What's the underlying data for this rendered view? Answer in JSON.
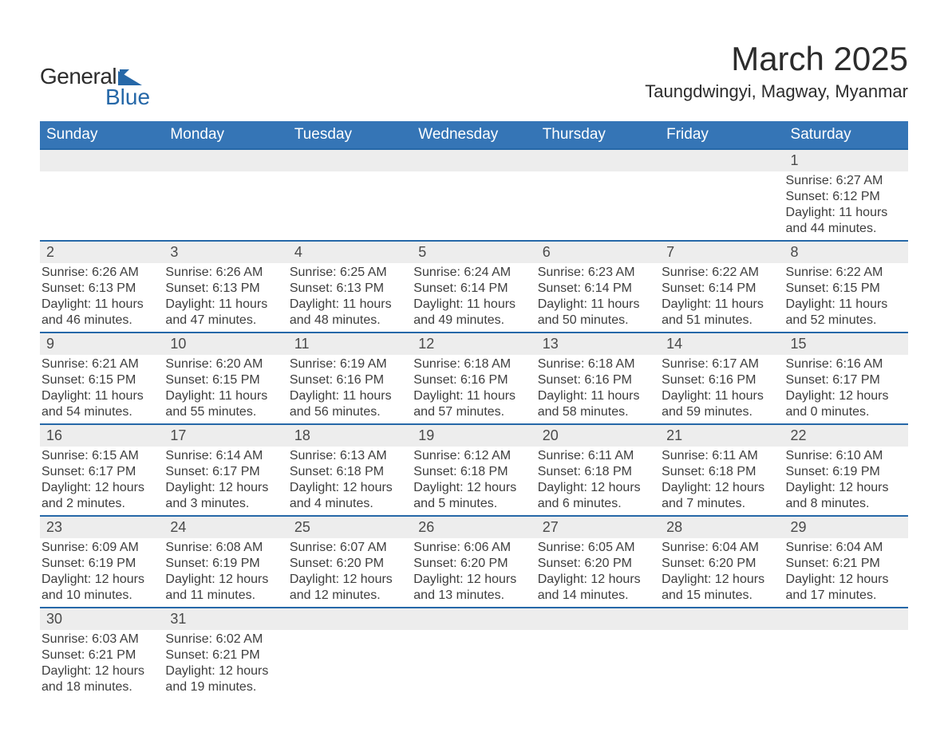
{
  "logo": {
    "text_general": "General",
    "text_blue": "Blue",
    "icon_color": "#2668a8"
  },
  "header": {
    "month_title": "March 2025",
    "location": "Taungdwingyi, Magway, Myanmar"
  },
  "colors": {
    "header_bg": "#3575b6",
    "header_text": "#ffffff",
    "row_border": "#2668a8",
    "daynum_bg": "#ededed",
    "body_bg": "#ffffff",
    "text": "#3e3e3e"
  },
  "day_headers": [
    "Sunday",
    "Monday",
    "Tuesday",
    "Wednesday",
    "Thursday",
    "Friday",
    "Saturday"
  ],
  "labels": {
    "sunrise": "Sunrise:",
    "sunset": "Sunset:",
    "daylight": "Daylight:"
  },
  "weeks": [
    [
      null,
      null,
      null,
      null,
      null,
      null,
      {
        "d": "1",
        "sr": "6:27 AM",
        "ss": "6:12 PM",
        "dl": "11 hours and 44 minutes."
      }
    ],
    [
      {
        "d": "2",
        "sr": "6:26 AM",
        "ss": "6:13 PM",
        "dl": "11 hours and 46 minutes."
      },
      {
        "d": "3",
        "sr": "6:26 AM",
        "ss": "6:13 PM",
        "dl": "11 hours and 47 minutes."
      },
      {
        "d": "4",
        "sr": "6:25 AM",
        "ss": "6:13 PM",
        "dl": "11 hours and 48 minutes."
      },
      {
        "d": "5",
        "sr": "6:24 AM",
        "ss": "6:14 PM",
        "dl": "11 hours and 49 minutes."
      },
      {
        "d": "6",
        "sr": "6:23 AM",
        "ss": "6:14 PM",
        "dl": "11 hours and 50 minutes."
      },
      {
        "d": "7",
        "sr": "6:22 AM",
        "ss": "6:14 PM",
        "dl": "11 hours and 51 minutes."
      },
      {
        "d": "8",
        "sr": "6:22 AM",
        "ss": "6:15 PM",
        "dl": "11 hours and 52 minutes."
      }
    ],
    [
      {
        "d": "9",
        "sr": "6:21 AM",
        "ss": "6:15 PM",
        "dl": "11 hours and 54 minutes."
      },
      {
        "d": "10",
        "sr": "6:20 AM",
        "ss": "6:15 PM",
        "dl": "11 hours and 55 minutes."
      },
      {
        "d": "11",
        "sr": "6:19 AM",
        "ss": "6:16 PM",
        "dl": "11 hours and 56 minutes."
      },
      {
        "d": "12",
        "sr": "6:18 AM",
        "ss": "6:16 PM",
        "dl": "11 hours and 57 minutes."
      },
      {
        "d": "13",
        "sr": "6:18 AM",
        "ss": "6:16 PM",
        "dl": "11 hours and 58 minutes."
      },
      {
        "d": "14",
        "sr": "6:17 AM",
        "ss": "6:16 PM",
        "dl": "11 hours and 59 minutes."
      },
      {
        "d": "15",
        "sr": "6:16 AM",
        "ss": "6:17 PM",
        "dl": "12 hours and 0 minutes."
      }
    ],
    [
      {
        "d": "16",
        "sr": "6:15 AM",
        "ss": "6:17 PM",
        "dl": "12 hours and 2 minutes."
      },
      {
        "d": "17",
        "sr": "6:14 AM",
        "ss": "6:17 PM",
        "dl": "12 hours and 3 minutes."
      },
      {
        "d": "18",
        "sr": "6:13 AM",
        "ss": "6:18 PM",
        "dl": "12 hours and 4 minutes."
      },
      {
        "d": "19",
        "sr": "6:12 AM",
        "ss": "6:18 PM",
        "dl": "12 hours and 5 minutes."
      },
      {
        "d": "20",
        "sr": "6:11 AM",
        "ss": "6:18 PM",
        "dl": "12 hours and 6 minutes."
      },
      {
        "d": "21",
        "sr": "6:11 AM",
        "ss": "6:18 PM",
        "dl": "12 hours and 7 minutes."
      },
      {
        "d": "22",
        "sr": "6:10 AM",
        "ss": "6:19 PM",
        "dl": "12 hours and 8 minutes."
      }
    ],
    [
      {
        "d": "23",
        "sr": "6:09 AM",
        "ss": "6:19 PM",
        "dl": "12 hours and 10 minutes."
      },
      {
        "d": "24",
        "sr": "6:08 AM",
        "ss": "6:19 PM",
        "dl": "12 hours and 11 minutes."
      },
      {
        "d": "25",
        "sr": "6:07 AM",
        "ss": "6:20 PM",
        "dl": "12 hours and 12 minutes."
      },
      {
        "d": "26",
        "sr": "6:06 AM",
        "ss": "6:20 PM",
        "dl": "12 hours and 13 minutes."
      },
      {
        "d": "27",
        "sr": "6:05 AM",
        "ss": "6:20 PM",
        "dl": "12 hours and 14 minutes."
      },
      {
        "d": "28",
        "sr": "6:04 AM",
        "ss": "6:20 PM",
        "dl": "12 hours and 15 minutes."
      },
      {
        "d": "29",
        "sr": "6:04 AM",
        "ss": "6:21 PM",
        "dl": "12 hours and 17 minutes."
      }
    ],
    [
      {
        "d": "30",
        "sr": "6:03 AM",
        "ss": "6:21 PM",
        "dl": "12 hours and 18 minutes."
      },
      {
        "d": "31",
        "sr": "6:02 AM",
        "ss": "6:21 PM",
        "dl": "12 hours and 19 minutes."
      },
      null,
      null,
      null,
      null,
      null
    ]
  ]
}
